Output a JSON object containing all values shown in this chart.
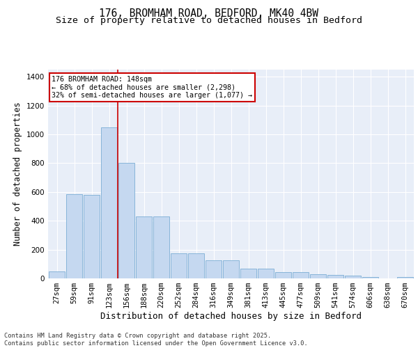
{
  "title1": "176, BROMHAM ROAD, BEDFORD, MK40 4BW",
  "title2": "Size of property relative to detached houses in Bedford",
  "xlabel": "Distribution of detached houses by size in Bedford",
  "ylabel": "Number of detached properties",
  "categories": [
    "27sqm",
    "59sqm",
    "91sqm",
    "123sqm",
    "156sqm",
    "188sqm",
    "220sqm",
    "252sqm",
    "284sqm",
    "316sqm",
    "349sqm",
    "381sqm",
    "413sqm",
    "445sqm",
    "477sqm",
    "509sqm",
    "541sqm",
    "574sqm",
    "606sqm",
    "638sqm",
    "670sqm"
  ],
  "values": [
    50,
    585,
    580,
    1050,
    800,
    430,
    430,
    175,
    175,
    125,
    125,
    70,
    70,
    45,
    45,
    30,
    25,
    20,
    10,
    0,
    10
  ],
  "bar_color": "#c5d8f0",
  "bar_edge_color": "#7aadd4",
  "bg_color": "#e8eef8",
  "grid_color": "#ffffff",
  "vline_x_index": 4,
  "vline_color": "#cc0000",
  "annotation_text": "176 BROMHAM ROAD: 148sqm\n← 68% of detached houses are smaller (2,298)\n32% of semi-detached houses are larger (1,077) →",
  "annotation_box_color": "#cc0000",
  "ylim": [
    0,
    1450
  ],
  "yticks": [
    0,
    200,
    400,
    600,
    800,
    1000,
    1200,
    1400
  ],
  "footer": "Contains HM Land Registry data © Crown copyright and database right 2025.\nContains public sector information licensed under the Open Government Licence v3.0.",
  "title_fontsize": 10.5,
  "subtitle_fontsize": 9.5,
  "axis_label_fontsize": 8.5,
  "tick_fontsize": 7.5,
  "footer_fontsize": 6.2
}
